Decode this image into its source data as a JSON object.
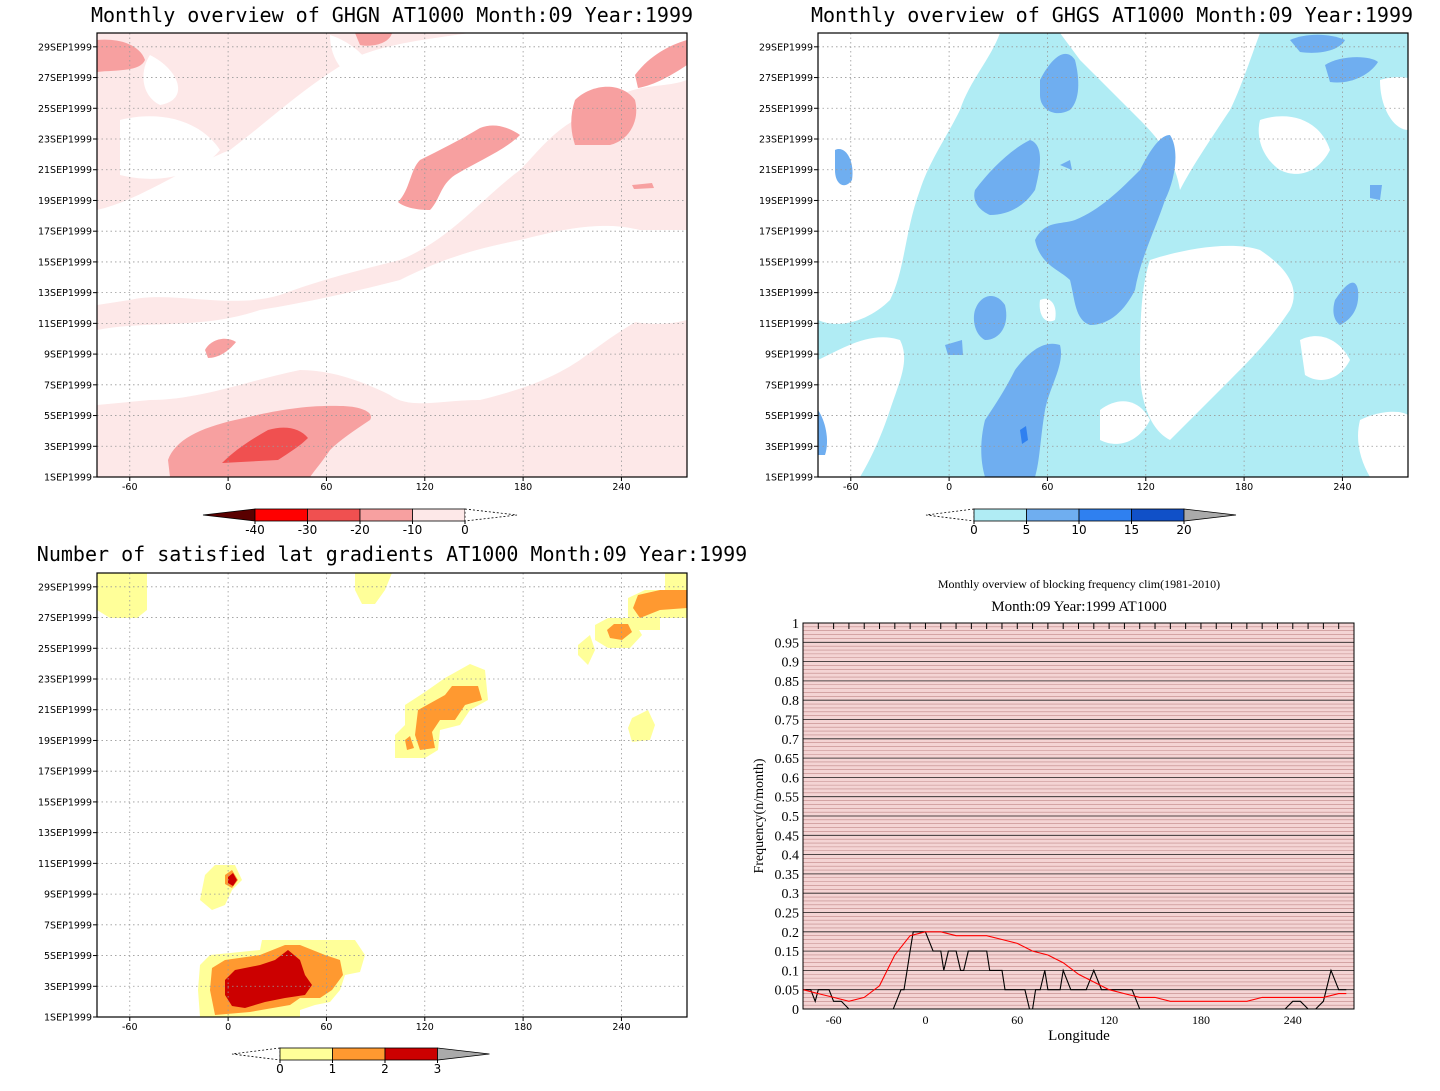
{
  "chart_data": [
    {
      "type": "heatmap",
      "title": "Monthly overview of GHGN AT1000 Month:09 Year:1999",
      "x_ticks": [
        -60,
        0,
        60,
        120,
        180,
        240
      ],
      "xlim": [
        -80,
        280
      ],
      "y_ticks": [
        "1SEP1999",
        "3SEP1999",
        "5SEP1999",
        "7SEP1999",
        "9SEP1999",
        "11SEP1999",
        "13SEP1999",
        "15SEP1999",
        "17SEP1999",
        "19SEP1999",
        "21SEP1999",
        "23SEP1999",
        "25SEP1999",
        "27SEP1999",
        "29SEP1999"
      ],
      "colorbar": {
        "ticks": [
          "-40",
          "-30",
          "-20",
          "-10",
          "0"
        ],
        "colors": [
          "#5a0000",
          "#ff0000",
          "#f05050",
          "#f7a0a0",
          "#fde8e8"
        ]
      },
      "background_color": "#fde8e8",
      "grid": true
    },
    {
      "type": "heatmap",
      "title": "Monthly overview of GHGS AT1000 Month:09 Year:1999",
      "x_ticks": [
        -60,
        0,
        60,
        120,
        180,
        240
      ],
      "xlim": [
        -80,
        280
      ],
      "y_ticks": [
        "1SEP1999",
        "3SEP1999",
        "5SEP1999",
        "7SEP1999",
        "9SEP1999",
        "11SEP1999",
        "13SEP1999",
        "15SEP1999",
        "17SEP1999",
        "19SEP1999",
        "21SEP1999",
        "23SEP1999",
        "25SEP1999",
        "27SEP1999",
        "29SEP1999"
      ],
      "colorbar": {
        "ticks": [
          "0",
          "5",
          "10",
          "15",
          "20"
        ],
        "colors": [
          "#b0ecf4",
          "#6faef0",
          "#2f80f0",
          "#1050c8",
          "#aaaaaa"
        ]
      },
      "background_color": "#b0ecf4",
      "grid": true
    },
    {
      "type": "heatmap",
      "title": "Number of satisfied lat gradients AT1000 Month:09 Year:1999",
      "x_ticks": [
        -60,
        0,
        60,
        120,
        180,
        240
      ],
      "xlim": [
        -80,
        280
      ],
      "y_ticks": [
        "1SEP1999",
        "3SEP1999",
        "5SEP1999",
        "7SEP1999",
        "9SEP1999",
        "11SEP1999",
        "13SEP1999",
        "15SEP1999",
        "17SEP1999",
        "19SEP1999",
        "21SEP1999",
        "23SEP1999",
        "25SEP1999",
        "27SEP1999",
        "29SEP1999"
      ],
      "colorbar": {
        "ticks": [
          "0",
          "1",
          "2",
          "3"
        ],
        "colors": [
          "#ffff99",
          "#ff9930",
          "#cc0000",
          "#aaaaaa"
        ]
      },
      "grid": true
    },
    {
      "type": "line",
      "title": "Monthly overview of blocking frequency clim(1981-2010)",
      "subtitle": "Month:09 Year:1999  AT1000",
      "xlabel": "Longitude",
      "ylabel": "Frequency(n/month)",
      "xlim": [
        -80,
        280
      ],
      "ylim": [
        0,
        1
      ],
      "x_ticks": [
        -60,
        0,
        60,
        120,
        180,
        240
      ],
      "y_ticks": [
        "0",
        "0.05",
        "0.1",
        "0.15",
        "0.2",
        "0.25",
        "0.3",
        "0.35",
        "0.4",
        "0.45",
        "0.5",
        "0.55",
        "0.6",
        "0.65",
        "0.7",
        "0.75",
        "0.8",
        "0.85",
        "0.9",
        "0.95",
        "1"
      ],
      "background_color": "#f4d4d4",
      "series": [
        {
          "color": "#000000",
          "x": [
            -80,
            -75,
            -72,
            -70,
            -66,
            -63,
            -60,
            -55,
            -50,
            -45,
            -40,
            -35,
            -30,
            -25,
            -21,
            -19,
            -16,
            -14,
            -12,
            -10,
            -8,
            0,
            5,
            10,
            12,
            15,
            18,
            20,
            23,
            25,
            28,
            30,
            35,
            40,
            42,
            45,
            48,
            50,
            52,
            55,
            60,
            65,
            68,
            70,
            72,
            75,
            78,
            80,
            85,
            88,
            90,
            95,
            100,
            105,
            110,
            115,
            120,
            125,
            130,
            135,
            140,
            145,
            150,
            155,
            160,
            165,
            170,
            175,
            180,
            185,
            190,
            195,
            200,
            205,
            210,
            215,
            220,
            225,
            230,
            235,
            240,
            245,
            250,
            255,
            260,
            265,
            270,
            275
          ],
          "y": [
            0.05,
            0.05,
            0.02,
            0.05,
            0.05,
            0.05,
            0.02,
            0.02,
            0,
            0,
            0,
            0,
            0,
            0,
            0,
            0.02,
            0.05,
            0.05,
            0.1,
            0.15,
            0.2,
            0.2,
            0.15,
            0.15,
            0.1,
            0.15,
            0.15,
            0.15,
            0.1,
            0.1,
            0.15,
            0.15,
            0.15,
            0.15,
            0.1,
            0.1,
            0.1,
            0.1,
            0.05,
            0.05,
            0.05,
            0.05,
            0,
            0,
            0.05,
            0.05,
            0.1,
            0.05,
            0.05,
            0.05,
            0.1,
            0.05,
            0.05,
            0.05,
            0.1,
            0.05,
            0.05,
            0.05,
            0.05,
            0.05,
            0,
            0,
            0,
            0,
            0,
            0,
            0,
            0,
            0,
            0,
            0,
            0,
            0,
            0,
            0,
            0,
            0,
            0,
            0,
            0,
            0.02,
            0.02,
            0,
            0,
            0.02,
            0.1,
            0.05,
            0.05
          ]
        },
        {
          "color": "#ff0000",
          "x": [
            -80,
            -70,
            -60,
            -50,
            -40,
            -30,
            -20,
            -10,
            0,
            10,
            20,
            30,
            40,
            50,
            60,
            70,
            80,
            90,
            100,
            110,
            120,
            130,
            140,
            150,
            160,
            170,
            180,
            190,
            200,
            210,
            220,
            230,
            240,
            250,
            260,
            270,
            275
          ],
          "y": [
            0.05,
            0.04,
            0.03,
            0.02,
            0.03,
            0.06,
            0.14,
            0.19,
            0.2,
            0.2,
            0.19,
            0.19,
            0.19,
            0.18,
            0.17,
            0.15,
            0.14,
            0.12,
            0.09,
            0.07,
            0.05,
            0.04,
            0.03,
            0.03,
            0.02,
            0.02,
            0.02,
            0.02,
            0.02,
            0.02,
            0.03,
            0.03,
            0.03,
            0.03,
            0.03,
            0.04,
            0.04
          ]
        }
      ]
    }
  ]
}
